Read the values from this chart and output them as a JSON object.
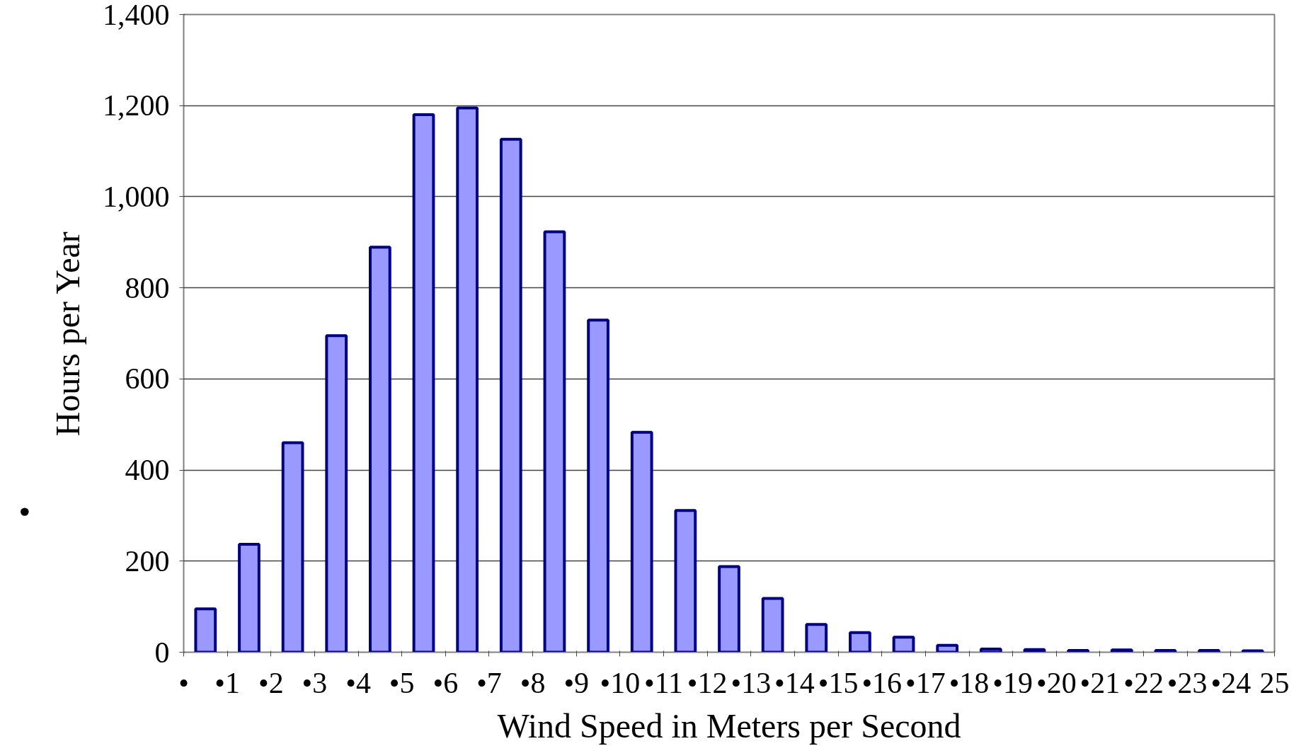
{
  "chart_data": {
    "type": "histogram",
    "xlabel": "Wind Speed in Meters per Second",
    "ylabel": "Hours per Year",
    "bins": [
      0,
      1,
      2,
      3,
      4,
      5,
      6,
      7,
      8,
      9,
      10,
      11,
      12,
      13,
      14,
      15,
      16,
      17,
      18,
      19,
      20,
      21,
      22,
      23,
      24,
      25
    ],
    "values": [
      95,
      237,
      460,
      695,
      889,
      1180,
      1195,
      1126,
      923,
      729,
      483,
      311,
      188,
      118,
      61,
      43,
      33,
      15,
      7,
      6,
      4,
      5,
      4,
      4,
      3
    ],
    "color": "#9999ff",
    "xlim": [
      0,
      25
    ],
    "xticks": [
      {
        "value": 0,
        "label": "•"
      },
      {
        "value": 1,
        "label": "•1"
      },
      {
        "value": 2,
        "label": "•2"
      },
      {
        "value": 3,
        "label": "•3"
      },
      {
        "value": 4,
        "label": "•4"
      },
      {
        "value": 5,
        "label": "•5"
      },
      {
        "value": 6,
        "label": "•6"
      },
      {
        "value": 7,
        "label": "•7"
      },
      {
        "value": 8,
        "label": "•8"
      },
      {
        "value": 9,
        "label": "•9"
      },
      {
        "value": 10,
        "label": "•10"
      },
      {
        "value": 11,
        "label": "•11"
      },
      {
        "value": 12,
        "label": "•12"
      },
      {
        "value": 13,
        "label": "•13"
      },
      {
        "value": 14,
        "label": "•14"
      },
      {
        "value": 15,
        "label": "•15"
      },
      {
        "value": 16,
        "label": "•16"
      },
      {
        "value": 17,
        "label": "•17"
      },
      {
        "value": 18,
        "label": "•18"
      },
      {
        "value": 19,
        "label": "•19"
      },
      {
        "value": 20,
        "label": "•20"
      },
      {
        "value": 21,
        "label": "•21"
      },
      {
        "value": 22,
        "label": "•22"
      },
      {
        "value": 23,
        "label": "•23"
      },
      {
        "value": 24,
        "label": "•24"
      },
      25
    ],
    "ylim": [
      0,
      1400
    ],
    "yticks": [
      0,
      200,
      400,
      600,
      800,
      {
        "value": 1000,
        "label": "1,000"
      },
      {
        "value": 1200,
        "label": "1,200"
      },
      {
        "value": 1400,
        "label": "1,400"
      }
    ],
    "grid": "y",
    "annotations": [
      "•"
    ]
  }
}
